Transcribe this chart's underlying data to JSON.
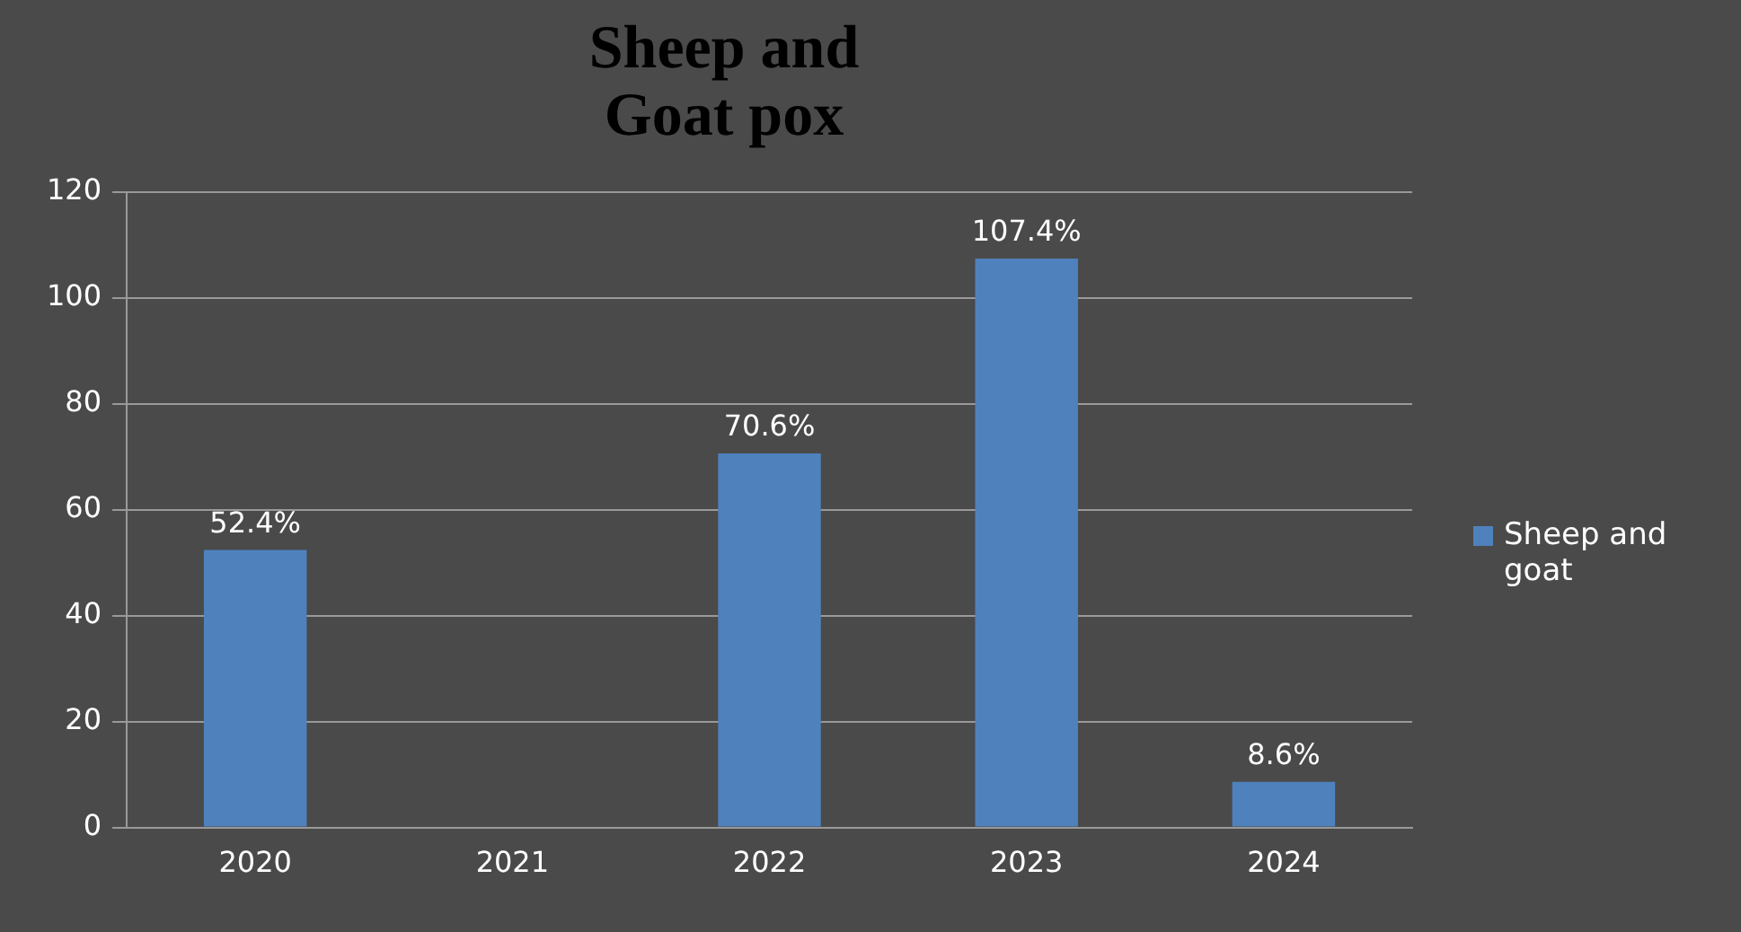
{
  "chart_data": {
    "type": "bar",
    "title": "Sheep and\nGoat pox",
    "categories": [
      "2020",
      "2021",
      "2022",
      "2023",
      "2024"
    ],
    "series": [
      {
        "name": "Sheep and goat",
        "color": "#4f81bd",
        "values": [
          52.4,
          null,
          70.6,
          107.4,
          8.6
        ],
        "value_labels": [
          "52.4%",
          null,
          "70.6%",
          "107.4%",
          "8.6%"
        ]
      }
    ],
    "ylim": [
      0,
      120
    ],
    "yticks": [
      0,
      20,
      40,
      60,
      80,
      100,
      120
    ],
    "grid": "y",
    "legend": "right"
  }
}
